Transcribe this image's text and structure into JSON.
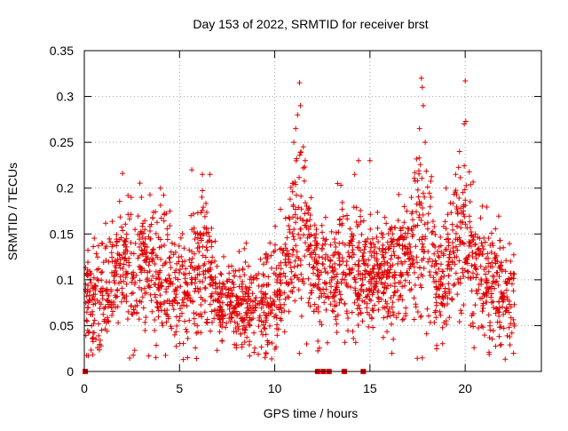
{
  "chart_data": {
    "type": "scatter",
    "title": "Day 153 of 2022, SRMTID for receiver brst",
    "xlabel": "GPS time / hours",
    "ylabel": "SRMTID / TECUs",
    "xlim": [
      0,
      24
    ],
    "ylim": [
      0,
      0.35
    ],
    "x_ticks": [
      0,
      5,
      10,
      15,
      20
    ],
    "x_tick_labels": [
      "0",
      "5",
      "10",
      "15",
      "20"
    ],
    "y_ticks": [
      0,
      0.05,
      0.1,
      0.15,
      0.2,
      0.25,
      0.3,
      0.35
    ],
    "y_tick_labels": [
      "0",
      "0.05",
      "0.1",
      "0.15",
      "0.2",
      "0.25",
      "0.3",
      "0.35"
    ],
    "grid": true,
    "marker": "+",
    "series_color": "#e00000",
    "zero_flag_x": [
      0.05,
      12.25,
      12.55,
      12.85,
      13.65,
      14.65
    ],
    "envelope": [
      [
        0.0,
        0.085,
        0.03
      ],
      [
        0.5,
        0.08,
        0.03
      ],
      [
        1.0,
        0.09,
        0.03
      ],
      [
        1.5,
        0.1,
        0.03
      ],
      [
        2.0,
        0.115,
        0.035
      ],
      [
        2.5,
        0.12,
        0.035
      ],
      [
        3.0,
        0.125,
        0.035
      ],
      [
        3.5,
        0.115,
        0.035
      ],
      [
        4.0,
        0.11,
        0.035
      ],
      [
        4.5,
        0.105,
        0.035
      ],
      [
        5.0,
        0.085,
        0.03
      ],
      [
        5.5,
        0.09,
        0.03
      ],
      [
        6.0,
        0.115,
        0.04
      ],
      [
        6.5,
        0.13,
        0.04
      ],
      [
        7.0,
        0.075,
        0.02
      ],
      [
        7.5,
        0.07,
        0.02
      ],
      [
        8.0,
        0.07,
        0.02
      ],
      [
        8.5,
        0.075,
        0.025
      ],
      [
        9.0,
        0.07,
        0.025
      ],
      [
        9.5,
        0.075,
        0.03
      ],
      [
        10.0,
        0.085,
        0.03
      ],
      [
        10.5,
        0.1,
        0.03
      ],
      [
        11.0,
        0.15,
        0.05
      ],
      [
        11.5,
        0.165,
        0.055
      ],
      [
        12.0,
        0.11,
        0.03
      ],
      [
        12.5,
        0.105,
        0.03
      ],
      [
        13.0,
        0.1,
        0.03
      ],
      [
        13.5,
        0.12,
        0.035
      ],
      [
        14.0,
        0.115,
        0.035
      ],
      [
        14.5,
        0.11,
        0.035
      ],
      [
        15.0,
        0.105,
        0.03
      ],
      [
        15.5,
        0.11,
        0.03
      ],
      [
        16.0,
        0.11,
        0.03
      ],
      [
        16.5,
        0.115,
        0.035
      ],
      [
        17.0,
        0.11,
        0.035
      ],
      [
        17.5,
        0.15,
        0.05
      ],
      [
        18.0,
        0.13,
        0.04
      ],
      [
        18.5,
        0.1,
        0.03
      ],
      [
        19.0,
        0.1,
        0.03
      ],
      [
        19.5,
        0.135,
        0.045
      ],
      [
        20.0,
        0.14,
        0.045
      ],
      [
        20.5,
        0.12,
        0.035
      ],
      [
        21.0,
        0.1,
        0.03
      ],
      [
        21.5,
        0.095,
        0.03
      ],
      [
        22.0,
        0.085,
        0.03
      ],
      [
        22.5,
        0.075,
        0.03
      ]
    ],
    "spikes": [
      [
        11.3,
        0.315
      ],
      [
        11.35,
        0.29
      ],
      [
        11.2,
        0.28
      ],
      [
        11.1,
        0.265
      ],
      [
        11.0,
        0.25
      ],
      [
        11.5,
        0.245
      ],
      [
        11.6,
        0.23
      ],
      [
        17.7,
        0.32
      ],
      [
        17.75,
        0.31
      ],
      [
        17.8,
        0.29
      ],
      [
        17.6,
        0.265
      ],
      [
        17.9,
        0.25
      ],
      [
        20.0,
        0.317
      ],
      [
        19.95,
        0.27
      ],
      [
        19.7,
        0.24
      ],
      [
        19.5,
        0.215
      ],
      [
        14.4,
        0.23
      ],
      [
        14.2,
        0.215
      ],
      [
        15.0,
        0.23
      ],
      [
        6.6,
        0.215
      ],
      [
        6.2,
        0.215
      ],
      [
        4.0,
        0.2
      ],
      [
        3.0,
        0.19
      ],
      [
        5.6,
        0.17
      ],
      [
        8.5,
        0.14
      ],
      [
        13.3,
        0.205
      ],
      [
        19.0,
        0.2
      ],
      [
        18.2,
        0.19
      ],
      [
        16.8,
        0.18
      ],
      [
        5.2,
        0.013
      ]
    ],
    "sample_count": 2300,
    "hour_range": [
      0.05,
      22.6
    ],
    "random_seed": 153
  }
}
